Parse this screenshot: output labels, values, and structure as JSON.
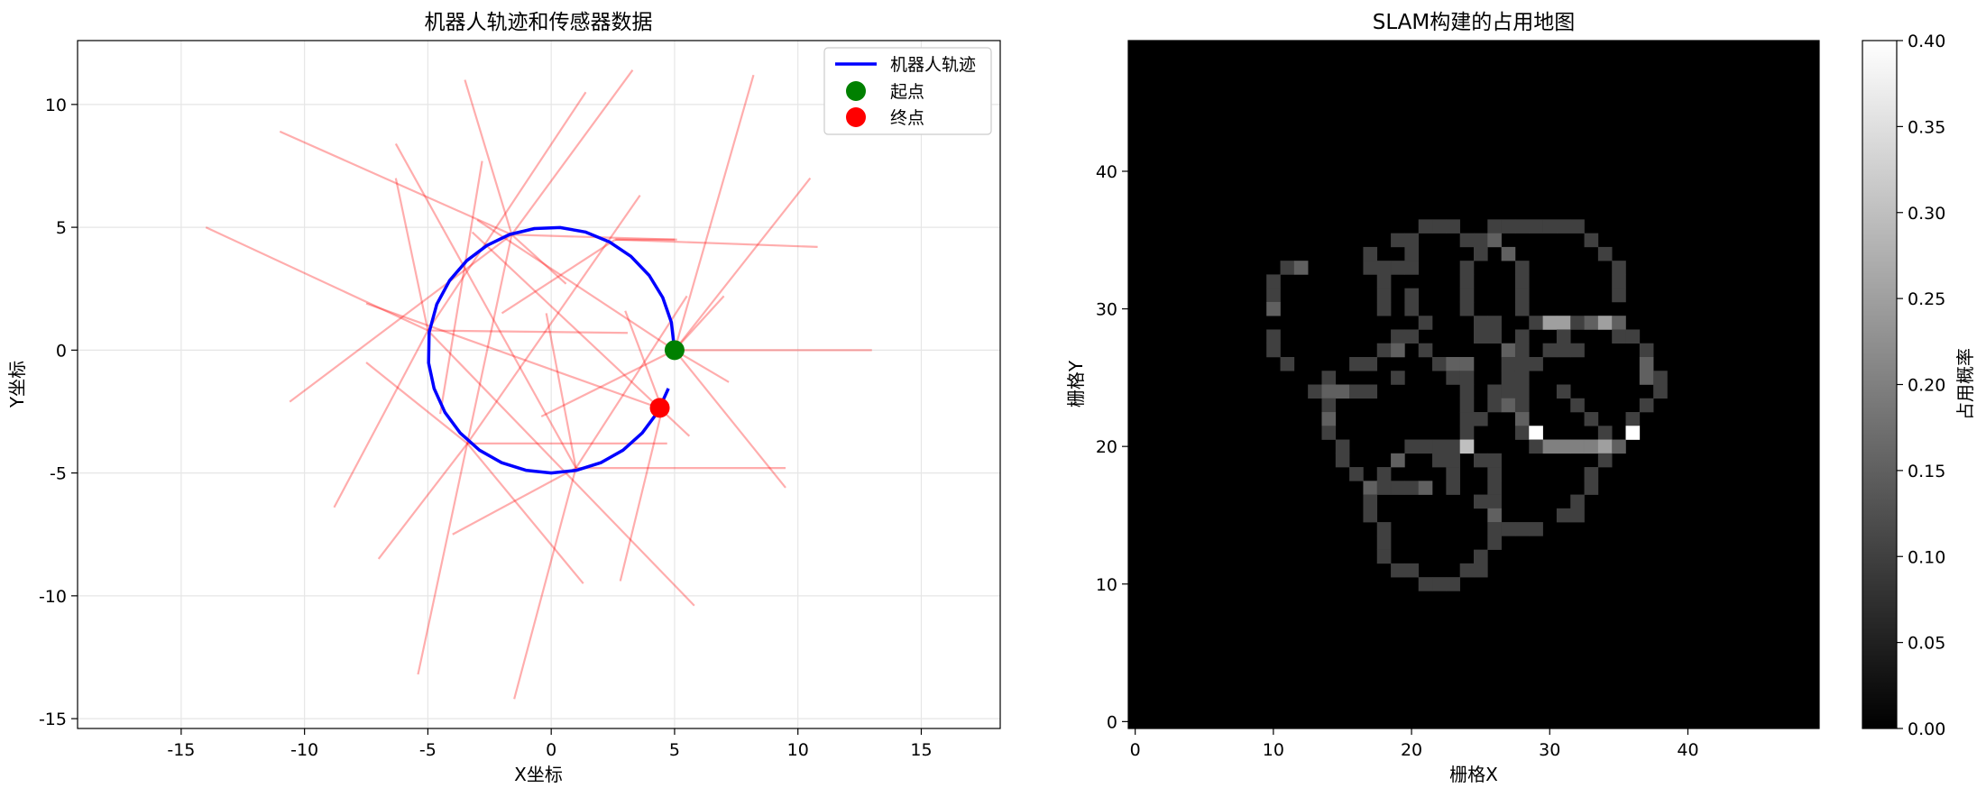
{
  "chart_data": [
    {
      "type": "line",
      "title": "机器人轨迹和传感器数据",
      "xlabel": "X坐标",
      "ylabel": "Y坐标",
      "xlim": [
        -19.2,
        18.2
      ],
      "ylim": [
        -15.4,
        12.6
      ],
      "xticks": [
        -15,
        -10,
        -5,
        0,
        5,
        10,
        15
      ],
      "yticks": [
        -15,
        -10,
        -5,
        0,
        5,
        10
      ],
      "grid": true,
      "legend_position": "top-right",
      "series": [
        {
          "name": "机器人轨迹",
          "kind": "line",
          "color": "#0000ff",
          "note_shape": "circle radius 5 centered (0,0), counter-clockwise, from angle 0 to ~-0.5 rad",
          "x": [
            5.0,
            4.87,
            4.52,
            3.97,
            3.23,
            2.35,
            1.38,
            0.36,
            -0.68,
            -1.68,
            -2.61,
            -3.43,
            -4.12,
            -4.64,
            -4.95,
            -4.97,
            -4.75,
            -4.31,
            -3.69,
            -2.91,
            -2.01,
            -1.03,
            0.0,
            1.03,
            2.01,
            2.91,
            3.69,
            4.31,
            4.75
          ],
          "y": [
            0.0,
            1.13,
            2.14,
            3.04,
            3.82,
            4.41,
            4.81,
            4.99,
            4.95,
            4.71,
            4.26,
            3.64,
            2.83,
            1.87,
            0.72,
            -0.52,
            -1.56,
            -2.53,
            -3.37,
            -4.07,
            -4.58,
            -4.89,
            -5.0,
            -4.89,
            -4.58,
            -4.07,
            -3.37,
            -2.53,
            -1.56
          ]
        },
        {
          "name": "起点",
          "kind": "point",
          "color": "#008000",
          "x": 5.0,
          "y": 0.0
        },
        {
          "name": "终点",
          "kind": "point",
          "color": "#ff0000",
          "x": 4.4,
          "y": -2.35
        }
      ],
      "sensor_rays": [
        [
          5.0,
          0.0,
          13.0,
          0.0
        ],
        [
          5.0,
          0.0,
          10.5,
          7.0
        ],
        [
          5.0,
          0.0,
          8.2,
          11.2
        ],
        [
          5.0,
          0.0,
          7.2,
          -1.3
        ],
        [
          5.0,
          0.0,
          9.5,
          -5.6
        ],
        [
          5.0,
          0.0,
          7.0,
          2.2
        ],
        [
          5.0,
          0.0,
          -3.0,
          5.3
        ],
        [
          5.0,
          0.0,
          -0.4,
          -2.7
        ],
        [
          2.6,
          4.5,
          10.8,
          4.2
        ],
        [
          2.6,
          4.5,
          5.1,
          4.5
        ],
        [
          2.6,
          4.5,
          -2.0,
          1.5
        ],
        [
          -1.6,
          4.7,
          -11.0,
          8.9
        ],
        [
          -1.6,
          4.7,
          3.3,
          11.4
        ],
        [
          -1.6,
          4.7,
          -5.4,
          -13.2
        ],
        [
          -1.6,
          4.7,
          0.6,
          2.7
        ],
        [
          -1.6,
          4.7,
          -3.5,
          11.0
        ],
        [
          -1.6,
          4.7,
          -10.6,
          -2.1
        ],
        [
          -1.6,
          4.7,
          5.0,
          4.5
        ],
        [
          -2.8,
          7.7,
          -4.5,
          -2.6
        ],
        [
          -5.0,
          0.8,
          -14.0,
          5.0
        ],
        [
          -5.0,
          0.8,
          3.1,
          0.7
        ],
        [
          -5.0,
          0.8,
          -8.8,
          -6.4
        ],
        [
          -5.0,
          0.8,
          5.8,
          -10.4
        ],
        [
          -5.0,
          0.8,
          -6.3,
          7.0
        ],
        [
          -5.0,
          0.8,
          1.4,
          10.5
        ],
        [
          -3.4,
          -3.8,
          4.7,
          -3.8
        ],
        [
          -3.4,
          -3.8,
          -7.5,
          -0.5
        ],
        [
          -3.4,
          -3.8,
          -7.0,
          -8.5
        ],
        [
          -3.4,
          -3.8,
          1.3,
          -9.5
        ],
        [
          -3.4,
          -3.8,
          3.6,
          6.3
        ],
        [
          1.0,
          -4.8,
          9.5,
          -4.8
        ],
        [
          1.0,
          -4.8,
          -6.3,
          8.4
        ],
        [
          1.0,
          -4.8,
          -4.0,
          -7.5
        ],
        [
          1.0,
          -4.8,
          5.5,
          2.2
        ],
        [
          1.0,
          -4.8,
          -1.5,
          -14.2
        ],
        [
          1.0,
          -4.8,
          -0.2,
          1.5
        ],
        [
          4.5,
          -2.4,
          2.8,
          -9.4
        ],
        [
          4.5,
          -2.4,
          -7.5,
          1.9
        ],
        [
          4.5,
          -2.4,
          3.0,
          1.6
        ],
        [
          -3.2,
          4.8,
          5.6,
          -3.5
        ]
      ]
    },
    {
      "type": "heatmap",
      "title": "SLAM构建的占用地图",
      "xlabel": "栅格X",
      "ylabel": "栅格Y",
      "colorbar_label": "占用概率",
      "grid_size": [
        50,
        50
      ],
      "xticks": [
        0,
        10,
        20,
        30,
        40
      ],
      "yticks": [
        0,
        10,
        20,
        30,
        40
      ],
      "clim": [
        0.0,
        0.4
      ],
      "colorbar_ticks": [
        0.0,
        0.05,
        0.1,
        0.15,
        0.2,
        0.25,
        0.3,
        0.35,
        0.4
      ],
      "colormap": "gray",
      "note_cells": "non-zero cells listed as [x, y, value]; all others 0",
      "cells": [
        [
          21,
          36,
          0.1
        ],
        [
          22,
          36,
          0.1
        ],
        [
          23,
          36,
          0.1
        ],
        [
          26,
          36,
          0.1
        ],
        [
          27,
          36,
          0.1
        ],
        [
          28,
          36,
          0.1
        ],
        [
          29,
          36,
          0.1
        ],
        [
          30,
          36,
          0.1
        ],
        [
          31,
          36,
          0.1
        ],
        [
          32,
          36,
          0.1
        ],
        [
          19,
          35,
          0.1
        ],
        [
          20,
          35,
          0.1
        ],
        [
          24,
          35,
          0.1
        ],
        [
          25,
          35,
          0.1
        ],
        [
          26,
          35,
          0.15
        ],
        [
          33,
          35,
          0.1
        ],
        [
          17,
          34,
          0.1
        ],
        [
          20,
          34,
          0.1
        ],
        [
          25,
          34,
          0.1
        ],
        [
          27,
          34,
          0.15
        ],
        [
          34,
          34,
          0.1
        ],
        [
          11,
          33,
          0.1
        ],
        [
          12,
          33,
          0.15
        ],
        [
          17,
          33,
          0.1
        ],
        [
          18,
          33,
          0.1
        ],
        [
          19,
          33,
          0.1
        ],
        [
          20,
          33,
          0.1
        ],
        [
          24,
          33,
          0.1
        ],
        [
          28,
          33,
          0.1
        ],
        [
          35,
          33,
          0.1
        ],
        [
          10,
          32,
          0.1
        ],
        [
          18,
          32,
          0.1
        ],
        [
          24,
          32,
          0.1
        ],
        [
          28,
          32,
          0.1
        ],
        [
          35,
          32,
          0.1
        ],
        [
          10,
          31,
          0.1
        ],
        [
          18,
          31,
          0.1
        ],
        [
          20,
          31,
          0.1
        ],
        [
          24,
          31,
          0.1
        ],
        [
          28,
          31,
          0.1
        ],
        [
          35,
          31,
          0.1
        ],
        [
          10,
          30,
          0.15
        ],
        [
          18,
          30,
          0.1
        ],
        [
          20,
          30,
          0.1
        ],
        [
          24,
          30,
          0.1
        ],
        [
          28,
          30,
          0.1
        ],
        [
          21,
          29,
          0.1
        ],
        [
          25,
          29,
          0.1
        ],
        [
          26,
          29,
          0.1
        ],
        [
          29,
          29,
          0.1
        ],
        [
          30,
          29,
          0.25
        ],
        [
          31,
          29,
          0.25
        ],
        [
          32,
          29,
          0.1
        ],
        [
          33,
          29,
          0.15
        ],
        [
          34,
          29,
          0.25
        ],
        [
          35,
          29,
          0.15
        ],
        [
          10,
          28,
          0.1
        ],
        [
          19,
          28,
          0.1
        ],
        [
          20,
          28,
          0.1
        ],
        [
          25,
          28,
          0.1
        ],
        [
          26,
          28,
          0.1
        ],
        [
          28,
          28,
          0.1
        ],
        [
          31,
          28,
          0.1
        ],
        [
          35,
          28,
          0.1
        ],
        [
          36,
          28,
          0.1
        ],
        [
          10,
          27,
          0.1
        ],
        [
          18,
          27,
          0.1
        ],
        [
          19,
          27,
          0.15
        ],
        [
          21,
          27,
          0.1
        ],
        [
          27,
          27,
          0.15
        ],
        [
          28,
          27,
          0.1
        ],
        [
          30,
          27,
          0.1
        ],
        [
          31,
          27,
          0.1
        ],
        [
          32,
          27,
          0.1
        ],
        [
          37,
          27,
          0.1
        ],
        [
          11,
          26,
          0.1
        ],
        [
          16,
          26,
          0.1
        ],
        [
          17,
          26,
          0.1
        ],
        [
          22,
          26,
          0.1
        ],
        [
          23,
          26,
          0.15
        ],
        [
          24,
          26,
          0.15
        ],
        [
          27,
          26,
          0.1
        ],
        [
          28,
          26,
          0.1
        ],
        [
          29,
          26,
          0.1
        ],
        [
          37,
          26,
          0.15
        ],
        [
          14,
          25,
          0.1
        ],
        [
          19,
          25,
          0.1
        ],
        [
          23,
          25,
          0.1
        ],
        [
          24,
          25,
          0.1
        ],
        [
          27,
          25,
          0.1
        ],
        [
          28,
          25,
          0.1
        ],
        [
          37,
          25,
          0.15
        ],
        [
          38,
          25,
          0.1
        ],
        [
          13,
          24,
          0.1
        ],
        [
          14,
          24,
          0.15
        ],
        [
          15,
          24,
          0.15
        ],
        [
          16,
          24,
          0.1
        ],
        [
          17,
          24,
          0.1
        ],
        [
          24,
          24,
          0.1
        ],
        [
          26,
          24,
          0.1
        ],
        [
          27,
          24,
          0.1
        ],
        [
          28,
          24,
          0.1
        ],
        [
          31,
          24,
          0.1
        ],
        [
          38,
          24,
          0.1
        ],
        [
          14,
          23,
          0.1
        ],
        [
          24,
          23,
          0.1
        ],
        [
          26,
          23,
          0.1
        ],
        [
          27,
          23,
          0.15
        ],
        [
          28,
          23,
          0.1
        ],
        [
          32,
          23,
          0.1
        ],
        [
          37,
          23,
          0.1
        ],
        [
          14,
          22,
          0.15
        ],
        [
          24,
          22,
          0.1
        ],
        [
          25,
          22,
          0.1
        ],
        [
          28,
          22,
          0.15
        ],
        [
          33,
          22,
          0.1
        ],
        [
          36,
          22,
          0.1
        ],
        [
          14,
          21,
          0.1
        ],
        [
          24,
          21,
          0.1
        ],
        [
          28,
          21,
          0.1
        ],
        [
          29,
          21,
          0.4
        ],
        [
          34,
          21,
          0.1
        ],
        [
          36,
          21,
          0.4
        ],
        [
          15,
          20,
          0.1
        ],
        [
          20,
          20,
          0.1
        ],
        [
          21,
          20,
          0.1
        ],
        [
          22,
          20,
          0.1
        ],
        [
          23,
          20,
          0.1
        ],
        [
          24,
          20,
          0.3
        ],
        [
          29,
          20,
          0.1
        ],
        [
          30,
          20,
          0.2
        ],
        [
          31,
          20,
          0.2
        ],
        [
          32,
          20,
          0.2
        ],
        [
          33,
          20,
          0.2
        ],
        [
          34,
          20,
          0.25
        ],
        [
          35,
          20,
          0.15
        ],
        [
          15,
          19,
          0.1
        ],
        [
          19,
          19,
          0.15
        ],
        [
          22,
          19,
          0.1
        ],
        [
          23,
          19,
          0.1
        ],
        [
          25,
          19,
          0.1
        ],
        [
          26,
          19,
          0.1
        ],
        [
          34,
          19,
          0.1
        ],
        [
          16,
          18,
          0.1
        ],
        [
          18,
          18,
          0.1
        ],
        [
          23,
          18,
          0.1
        ],
        [
          26,
          18,
          0.1
        ],
        [
          33,
          18,
          0.1
        ],
        [
          17,
          17,
          0.15
        ],
        [
          18,
          17,
          0.1
        ],
        [
          19,
          17,
          0.1
        ],
        [
          20,
          17,
          0.1
        ],
        [
          21,
          17,
          0.15
        ],
        [
          23,
          17,
          0.1
        ],
        [
          26,
          17,
          0.1
        ],
        [
          33,
          17,
          0.1
        ],
        [
          17,
          16,
          0.1
        ],
        [
          25,
          16,
          0.1
        ],
        [
          26,
          16,
          0.1
        ],
        [
          32,
          16,
          0.1
        ],
        [
          17,
          15,
          0.1
        ],
        [
          26,
          15,
          0.15
        ],
        [
          31,
          15,
          0.1
        ],
        [
          32,
          15,
          0.1
        ],
        [
          18,
          14,
          0.1
        ],
        [
          26,
          14,
          0.1
        ],
        [
          27,
          14,
          0.1
        ],
        [
          28,
          14,
          0.1
        ],
        [
          29,
          14,
          0.1
        ],
        [
          18,
          13,
          0.1
        ],
        [
          26,
          13,
          0.1
        ],
        [
          18,
          12,
          0.1
        ],
        [
          25,
          12,
          0.1
        ],
        [
          19,
          11,
          0.1
        ],
        [
          20,
          11,
          0.1
        ],
        [
          24,
          11,
          0.1
        ],
        [
          25,
          11,
          0.1
        ],
        [
          21,
          10,
          0.1
        ],
        [
          22,
          10,
          0.1
        ],
        [
          23,
          10,
          0.1
        ]
      ]
    }
  ]
}
